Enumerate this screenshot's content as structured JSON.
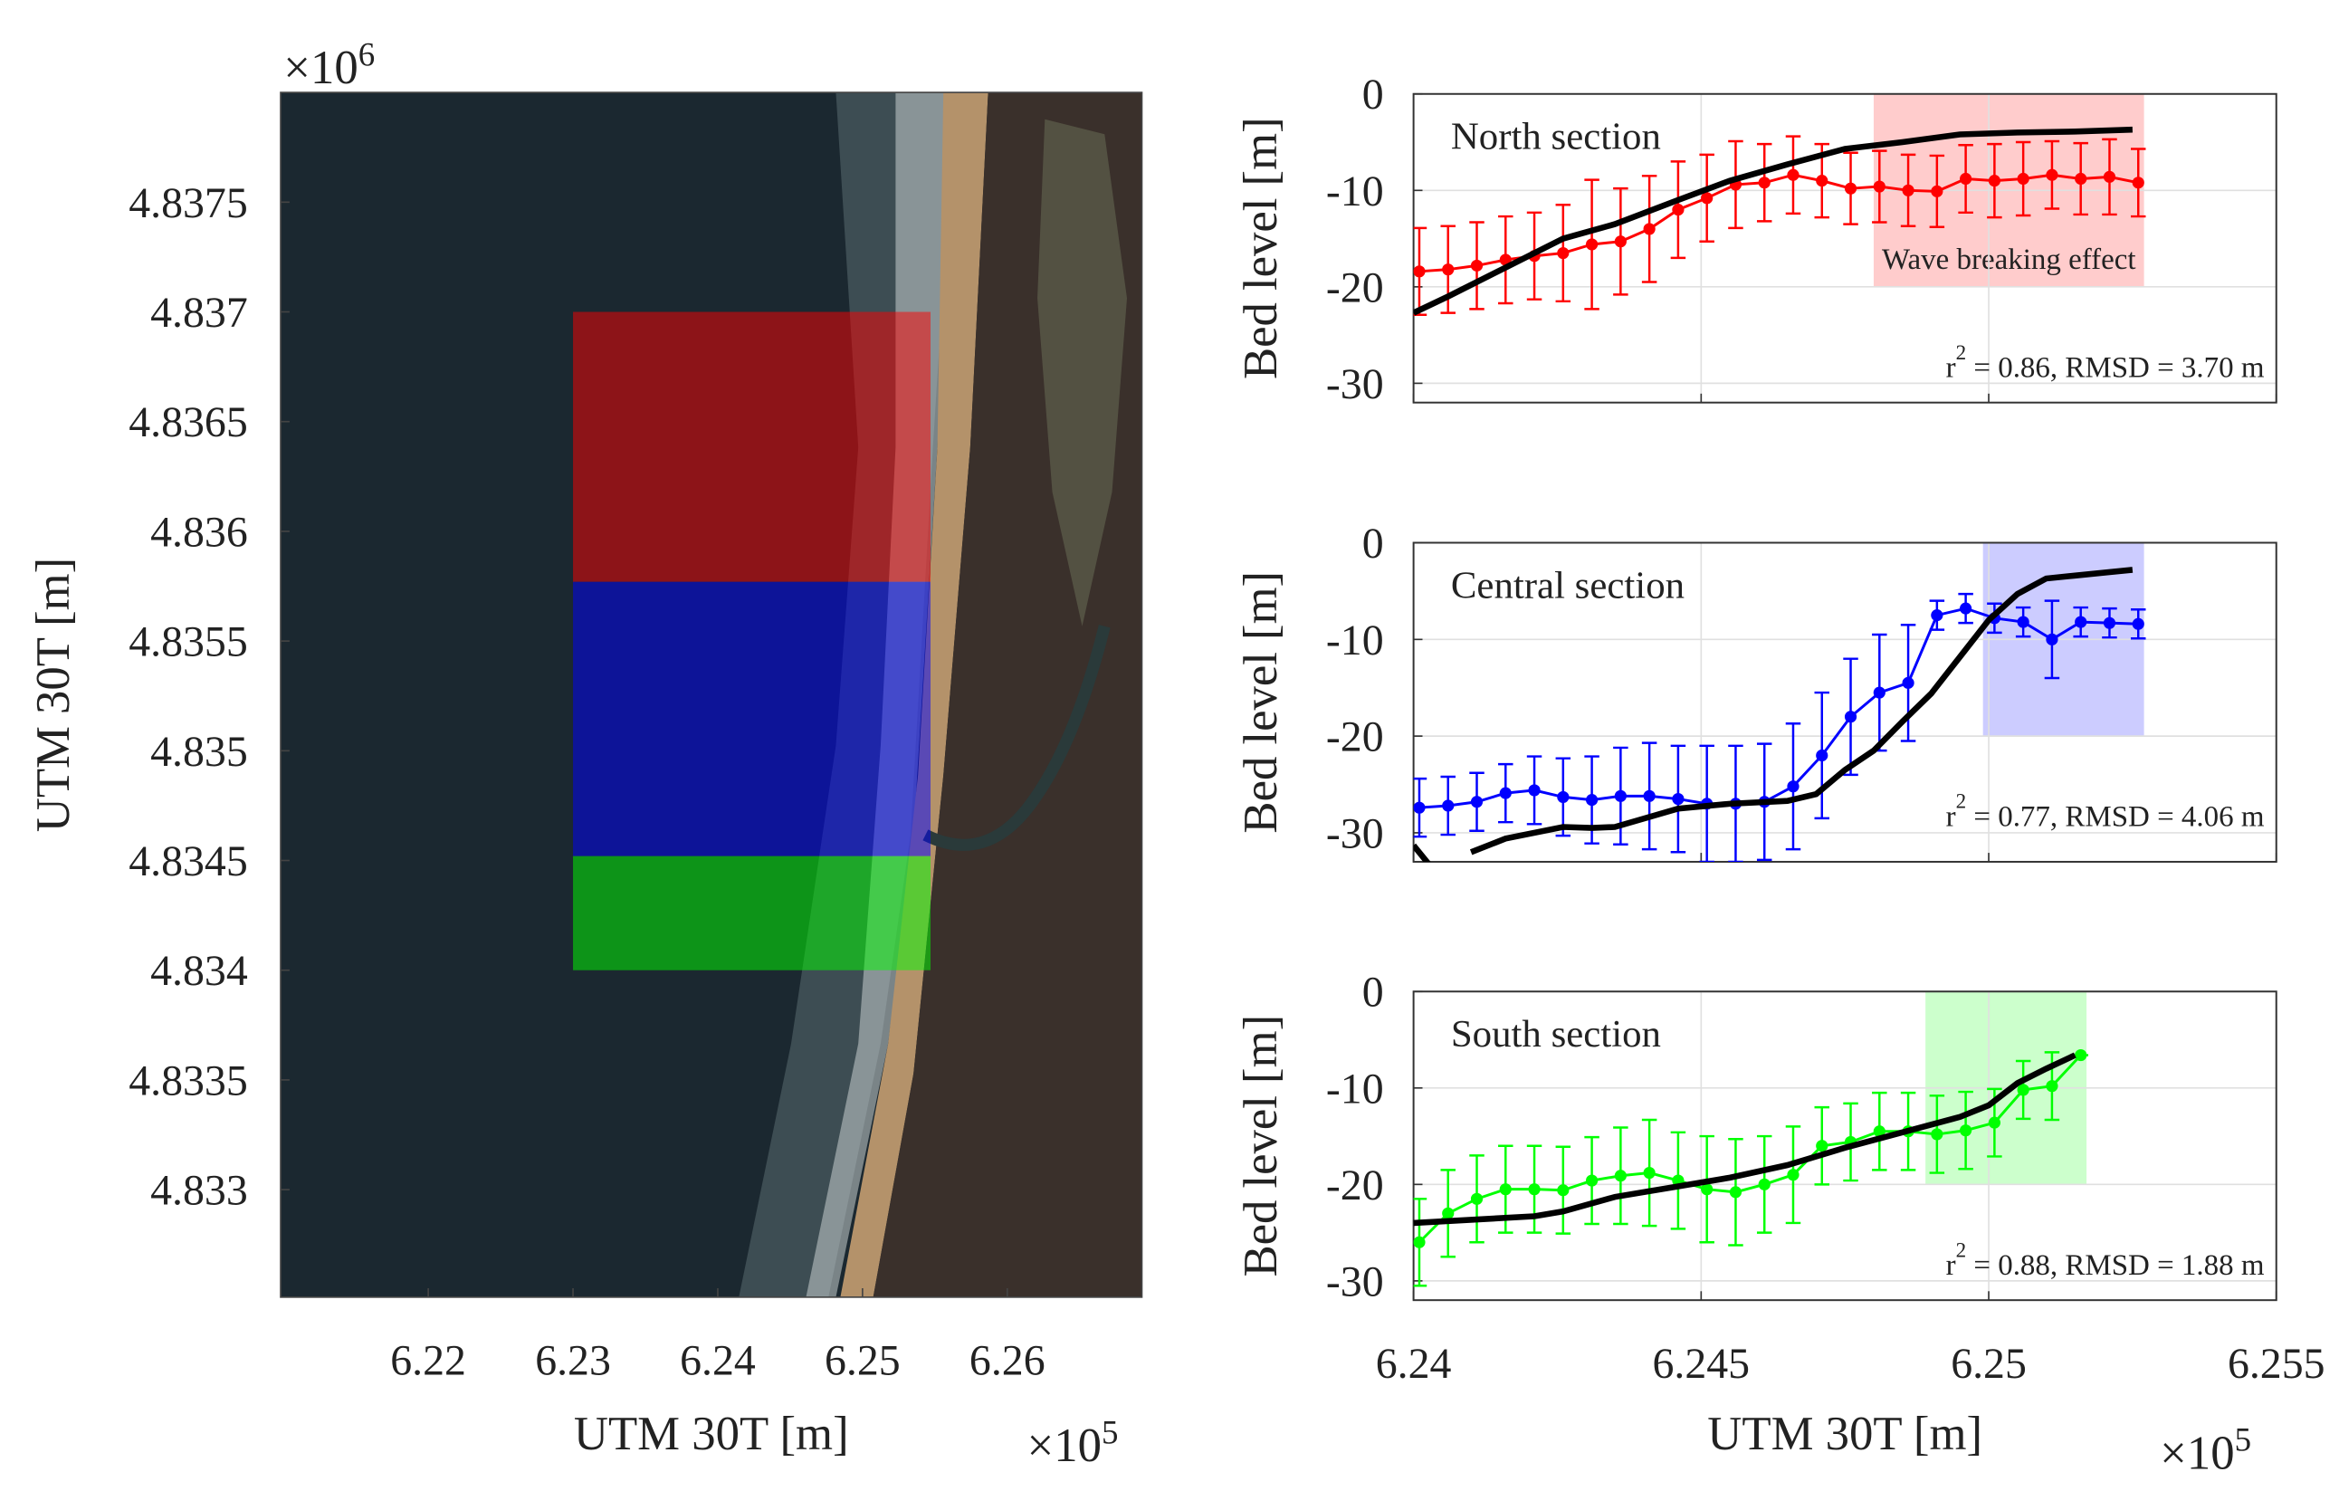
{
  "chart_data": [
    {
      "type": "map",
      "xlabel": "UTM 30T [m]",
      "ylabel": "UTM 30T [m]",
      "x_multiplier": {
        "base": "×10",
        "exponent": "5"
      },
      "y_multiplier": {
        "base": "×10",
        "exponent": "6"
      },
      "xlim": [
        6.2098,
        6.2693
      ],
      "xticks": [
        6.22,
        6.23,
        6.24,
        6.25,
        6.26
      ],
      "ylim": [
        4.83251,
        4.838
      ],
      "yticks": [
        4.833,
        4.8335,
        4.834,
        4.8345,
        4.835,
        4.8355,
        4.836,
        4.8365,
        4.837,
        4.8375
      ],
      "regions": [
        {
          "color": "#ff0000",
          "xlim": [
            6.23,
            6.2547
          ],
          "ylim": [
            4.83577,
            4.837
          ]
        },
        {
          "color": "#0000ff",
          "xlim": [
            6.23,
            6.2547
          ],
          "ylim": [
            4.83452,
            4.83577
          ]
        },
        {
          "color": "#00ff00",
          "xlim": [
            6.23,
            6.2547
          ],
          "ylim": [
            4.834,
            4.83452
          ]
        }
      ]
    },
    {
      "type": "line",
      "title": "North section",
      "ylabel": "Bed level [m]",
      "xlim": [
        6.24,
        6.255
      ],
      "xticks": [
        6.24,
        6.245,
        6.25,
        6.255
      ],
      "ylim": [
        -32,
        0
      ],
      "yticks": [
        0,
        -10,
        -20,
        -30
      ],
      "grid": true,
      "stats": {
        "base": "r",
        "exponent": "2",
        "text": " = 0.86, RMSD = 3.70 m"
      },
      "highlight": {
        "xlim": [
          6.248,
          6.2527
        ],
        "ylim": [
          -20,
          0
        ],
        "color": "#ff0000",
        "label": "Wave breaking effect"
      },
      "series": [
        {
          "color": "#ff0000",
          "x": [
            6.2401,
            6.2406,
            6.2411,
            6.2416,
            6.2421,
            6.2426,
            6.2431,
            6.2436,
            6.2441,
            6.2446,
            6.2451,
            6.2456,
            6.2461,
            6.2466,
            6.2471,
            6.2476,
            6.2481,
            6.2486,
            6.2491,
            6.2496,
            6.2501,
            6.2506,
            6.2511,
            6.2516,
            6.2521,
            6.2526
          ],
          "values": [
            -18.4,
            -18.2,
            -17.8,
            -17.2,
            -16.8,
            -16.5,
            -15.6,
            -15.3,
            -14,
            -12,
            -10.8,
            -9.4,
            -9.2,
            -8.4,
            -9,
            -9.8,
            -9.6,
            -10,
            -10.1,
            -8.8,
            -9,
            -8.8,
            -8.4,
            -8.8,
            -8.6,
            -9.2
          ],
          "errors": [
            4.5,
            4.5,
            4.5,
            4.5,
            4.5,
            5,
            6.7,
            5.5,
            5.5,
            5,
            4.5,
            4.5,
            4,
            4,
            3.8,
            3.7,
            3.7,
            3.7,
            3.7,
            3.5,
            3.8,
            3.8,
            3.5,
            3.7,
            3.9,
            3.5
          ]
        },
        {
          "color": "#000000",
          "x": [
            6.24,
            6.2406,
            6.2416,
            6.2426,
            6.2435,
            6.2446,
            6.2455,
            6.2465,
            6.2475,
            6.2485,
            6.2495,
            6.2505,
            6.2515,
            6.2525
          ],
          "values": [
            -22.7,
            -21,
            -18,
            -15,
            -13.5,
            -11,
            -9,
            -7.3,
            -5.7,
            -5,
            -4.2,
            -4,
            -3.9,
            -3.7
          ]
        }
      ]
    },
    {
      "type": "line",
      "title": "Central section",
      "ylabel": "Bed level [m]",
      "xlim": [
        6.24,
        6.255
      ],
      "xticks": [
        6.24,
        6.245,
        6.25,
        6.255
      ],
      "ylim": [
        -33,
        0
      ],
      "yticks": [
        0,
        -10,
        -20,
        -30
      ],
      "grid": true,
      "stats": {
        "base": "r",
        "exponent": "2",
        "text": " = 0.77, RMSD = 4.06 m"
      },
      "highlight": {
        "xlim": [
          6.2499,
          6.2527
        ],
        "ylim": [
          -20,
          0
        ],
        "color": "#0000ff"
      },
      "series": [
        {
          "color": "#0000ff",
          "x": [
            6.2401,
            6.2406,
            6.2411,
            6.2416,
            6.2421,
            6.2426,
            6.2431,
            6.2436,
            6.2441,
            6.2446,
            6.2451,
            6.2456,
            6.2461,
            6.2466,
            6.2471,
            6.2476,
            6.2481,
            6.2486,
            6.2491,
            6.2496,
            6.2501,
            6.2506,
            6.2511,
            6.2516,
            6.2521,
            6.2526
          ],
          "values": [
            -27.4,
            -27.2,
            -26.8,
            -25.9,
            -25.6,
            -26.3,
            -26.6,
            -26.2,
            -26.2,
            -26.5,
            -27,
            -27,
            -26.8,
            -25.2,
            -22,
            -18,
            -15.5,
            -14.5,
            -7.5,
            -6.8,
            -7.8,
            -8.2,
            -10,
            -8.2,
            -8.3,
            -8.4
          ],
          "errors": [
            3,
            3,
            3,
            3,
            3.5,
            4,
            4.5,
            5,
            5.5,
            5.5,
            6,
            6,
            6,
            6.5,
            6.5,
            6,
            6,
            6,
            1.5,
            1.5,
            1.5,
            1.5,
            4,
            1.5,
            1.5,
            1.5
          ]
        },
        {
          "color": "#000000",
          "x": [
            6.24,
            6.2403,
            6.2406,
            6.241,
            6.2416,
            6.2426,
            6.2431,
            6.2435,
            6.2446,
            6.2455,
            6.2465,
            6.247,
            6.2475,
            6.248,
            6.2485,
            6.249,
            6.2495,
            6.25,
            6.2505,
            6.251,
            6.2515,
            6.2525
          ],
          "values": [
            -31.3,
            -33.5,
            null,
            -32,
            -30.6,
            -29.4,
            -29.5,
            -29.4,
            -27.5,
            -27,
            -26.7,
            -26,
            -23.5,
            -21.5,
            -18.5,
            -15.6,
            -11.8,
            -8,
            -5.3,
            -3.7,
            -3.4,
            -2.8
          ]
        }
      ]
    },
    {
      "type": "line",
      "title": "South section",
      "ylabel": "Bed level [m]",
      "xlabel": "UTM 30T [m]",
      "x_multiplier": {
        "base": "×10",
        "exponent": "5"
      },
      "xlim": [
        6.24,
        6.255
      ],
      "xticks": [
        6.24,
        6.245,
        6.25,
        6.255
      ],
      "ylim": [
        -32,
        0
      ],
      "yticks": [
        0,
        -10,
        -20,
        -30
      ],
      "grid": true,
      "stats": {
        "base": "r",
        "exponent": "2",
        "text": " = 0.88, RMSD = 1.88 m"
      },
      "highlight": {
        "xlim": [
          6.2489,
          6.2517
        ],
        "ylim": [
          -20,
          0
        ],
        "color": "#00ff00"
      },
      "series": [
        {
          "color": "#00ff00",
          "x": [
            6.2401,
            6.2406,
            6.2411,
            6.2416,
            6.2421,
            6.2426,
            6.2431,
            6.2436,
            6.2441,
            6.2446,
            6.2451,
            6.2456,
            6.2461,
            6.2466,
            6.2471,
            6.2476,
            6.2481,
            6.2486,
            6.2491,
            6.2496,
            6.2501,
            6.2506,
            6.2511,
            6.2516
          ],
          "values": [
            -26,
            -23,
            -21.5,
            -20.5,
            -20.5,
            -20.6,
            -19.6,
            -19.1,
            -18.8,
            -19.6,
            -20.5,
            -20.8,
            -20,
            -19,
            -16,
            -15.6,
            -14.5,
            -14.5,
            -14.8,
            -14.4,
            -13.6,
            -10.2,
            -9.8,
            -6.6
          ],
          "errors": [
            4.5,
            4.5,
            4.5,
            4.5,
            4.5,
            4.5,
            4.5,
            5,
            5.5,
            5,
            5.5,
            5.5,
            5,
            5,
            4,
            4,
            4,
            4,
            4,
            4,
            3.5,
            3,
            3.5,
            0
          ]
        },
        {
          "color": "#000000",
          "x": [
            6.24,
            6.2421,
            6.2426,
            6.2435,
            6.2446,
            6.2455,
            6.2465,
            6.2475,
            6.2485,
            6.2495,
            6.25,
            6.2505,
            6.251,
            6.2515
          ],
          "values": [
            -24,
            -23.3,
            -22.8,
            -21.3,
            -20.2,
            -19.3,
            -18,
            -16.2,
            -14.6,
            -13,
            -11.8,
            -9.5,
            -8,
            -6.6
          ]
        }
      ]
    }
  ]
}
